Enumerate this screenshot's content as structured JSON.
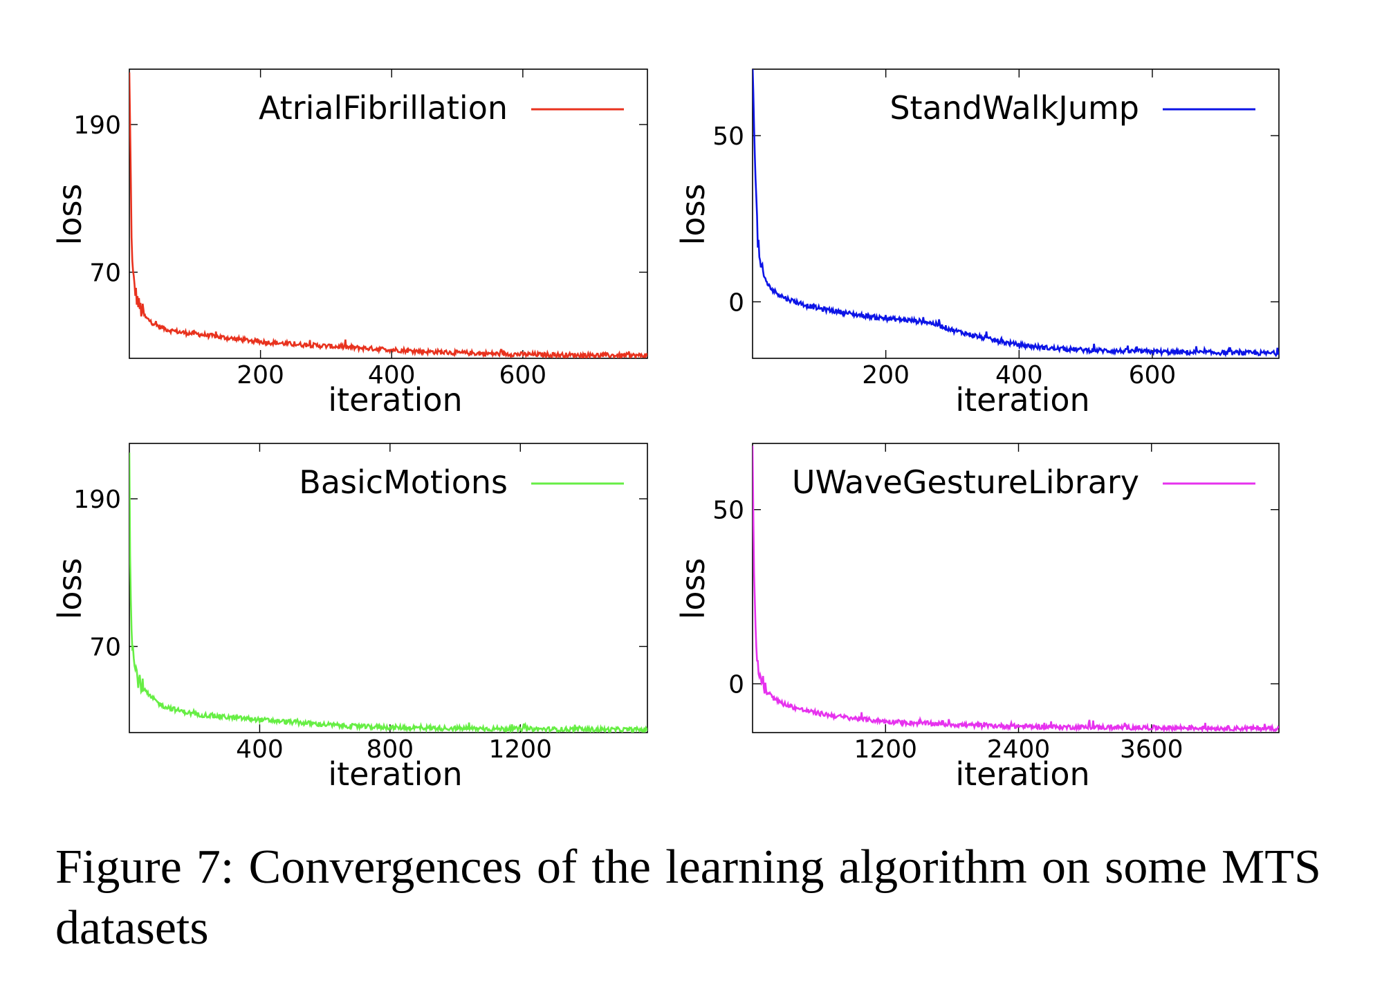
{
  "caption": {
    "label": "Figure 7:",
    "text": "Convergences of the learning algorithm on some MTS datasets"
  },
  "chart_data": [
    {
      "type": "line",
      "xlabel": "iteration",
      "ylabel": "loss",
      "xlim": [
        0,
        790
      ],
      "ylim": [
        0,
        235
      ],
      "xticks": [
        200,
        400,
        600
      ],
      "yticks": [
        70,
        190
      ],
      "legend_position": "top-right",
      "series": [
        {
          "name": "AtrialFibrillation",
          "color": "#e8321e",
          "x": [
            0,
            2,
            4,
            6,
            10,
            15,
            25,
            40,
            60,
            80,
            100,
            150,
            200,
            250,
            300,
            350,
            400,
            450,
            500,
            550,
            600,
            650,
            700,
            750,
            790
          ],
          "y": [
            230,
            155,
            80,
            65,
            52,
            42,
            33,
            27,
            23,
            21,
            20,
            16.5,
            13.5,
            11.5,
            10,
            8.5,
            7,
            5.5,
            4.5,
            3.8,
            3.2,
            2.8,
            2.5,
            2.3,
            2.2
          ]
        }
      ]
    },
    {
      "type": "line",
      "xlabel": "iteration",
      "ylabel": "loss",
      "xlim": [
        0,
        790
      ],
      "ylim": [
        -17,
        70
      ],
      "xticks": [
        200,
        400,
        600
      ],
      "yticks": [
        0,
        50
      ],
      "legend_position": "top-right",
      "series": [
        {
          "name": "StandWalkJump",
          "color": "#0c14e6",
          "x": [
            0,
            2,
            4,
            6,
            8,
            12,
            20,
            30,
            50,
            80,
            100,
            130,
            160,
            200,
            230,
            260,
            280,
            300,
            330,
            360,
            400,
            450,
            500,
            550,
            600,
            650,
            700,
            750,
            790
          ],
          "y": [
            70,
            55,
            42,
            28,
            18,
            10,
            6,
            3.5,
            1,
            -1,
            -2,
            -3,
            -4,
            -5,
            -5.5,
            -6,
            -7,
            -8.5,
            -10,
            -11.5,
            -13,
            -14,
            -14.5,
            -14.8,
            -15,
            -15.2,
            -15.3,
            -15.4,
            -15.5
          ]
        }
      ]
    },
    {
      "type": "line",
      "xlabel": "iteration",
      "ylabel": "loss",
      "xlim": [
        0,
        1590
      ],
      "ylim": [
        0,
        235
      ],
      "xticks": [
        400,
        800,
        1200
      ],
      "yticks": [
        70,
        190
      ],
      "legend_position": "top-right",
      "series": [
        {
          "name": "BasicMotions",
          "color": "#66ee44",
          "x": [
            0,
            3,
            6,
            10,
            15,
            25,
            40,
            60,
            80,
            100,
            150,
            200,
            300,
            400,
            500,
            600,
            700,
            800,
            900,
            1000,
            1100,
            1200,
            1300,
            1400,
            1500,
            1590
          ],
          "y": [
            235,
            120,
            95,
            70,
            55,
            45,
            37,
            30,
            26,
            22,
            18,
            15,
            12.5,
            10.5,
            8.5,
            6.5,
            5,
            4.2,
            3.8,
            3.4,
            3.1,
            2.9,
            2.7,
            2.5,
            2.4,
            2.3
          ]
        }
      ]
    },
    {
      "type": "line",
      "xlabel": "iteration",
      "ylabel": "loss",
      "xlim": [
        0,
        4750
      ],
      "ylim": [
        -14,
        69
      ],
      "xticks": [
        1200,
        2400,
        3600
      ],
      "yticks": [
        0,
        50
      ],
      "legend_position": "top-right",
      "series": [
        {
          "name": "UWaveGestureLibrary",
          "color": "#e632ee",
          "x": [
            0,
            10,
            20,
            30,
            50,
            80,
            120,
            200,
            300,
            450,
            600,
            800,
            1000,
            1200,
            1500,
            1800,
            2100,
            2400,
            2800,
            3200,
            3600,
            4000,
            4400,
            4750
          ],
          "y": [
            69,
            40,
            22,
            12,
            5,
            1,
            -2,
            -4.5,
            -6,
            -7.5,
            -8.5,
            -9.5,
            -10.2,
            -10.8,
            -11.3,
            -11.7,
            -12,
            -12.2,
            -12.4,
            -12.5,
            -12.6,
            -12.7,
            -12.8,
            -12.8
          ]
        }
      ]
    }
  ]
}
